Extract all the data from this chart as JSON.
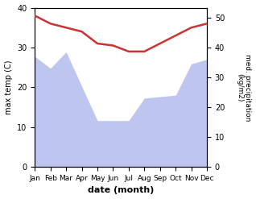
{
  "months": [
    "Jan",
    "Feb",
    "Mar",
    "Apr",
    "May",
    "Jun",
    "Jul",
    "Aug",
    "Sep",
    "Oct",
    "Nov",
    "Dec"
  ],
  "temperature": [
    38,
    36,
    35,
    34,
    31,
    30.5,
    29,
    29,
    31,
    33,
    35,
    36
  ],
  "precipitation_mm": [
    370,
    330,
    385,
    270,
    155,
    155,
    155,
    230,
    235,
    240,
    345,
    360
  ],
  "temp_color": "#cc3333",
  "precip_color": "#b3bcee",
  "ylabel_left": "max temp (C)",
  "ylabel_right": "med. precipitation\n(kg/m2)",
  "xlabel": "date (month)",
  "ylim_left": [
    0,
    40
  ],
  "ylim_right": [
    0,
    533
  ],
  "right_ticks": [
    0,
    100,
    200,
    300,
    400,
    500
  ],
  "right_ticklabels": [
    "0",
    "10",
    "20",
    "30",
    "40",
    "50"
  ],
  "left_ticks": [
    0,
    10,
    20,
    30,
    40
  ],
  "bg_color": "#ffffff"
}
